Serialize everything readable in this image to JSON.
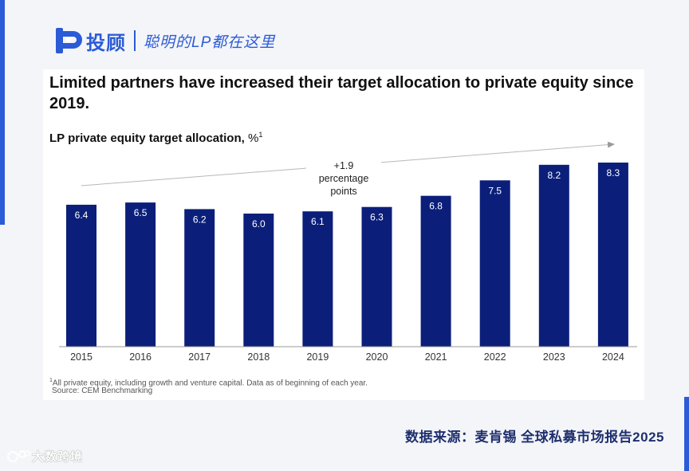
{
  "brand": {
    "name": "投顾",
    "slogan": "聪明的LP都在这里",
    "accent_color": "#2b5bd7"
  },
  "card": {
    "headline": "Limited partners have increased their target allocation to private equity since 2019.",
    "subtitle": "LP private equity target allocation,",
    "subtitle_unit": "%",
    "subtitle_footnote_mark": "1",
    "footnote_mark": "1",
    "footnote": "All private equity, including growth and venture capital. Data as of beginning of each year.",
    "source": "Source: CEM Benchmarking"
  },
  "chart_data": {
    "type": "bar",
    "title": "LP private equity target allocation, %",
    "xlabel": "",
    "ylabel": "",
    "categories": [
      "2015",
      "2016",
      "2017",
      "2018",
      "2019",
      "2020",
      "2021",
      "2022",
      "2023",
      "2024"
    ],
    "values": [
      6.4,
      6.5,
      6.2,
      6.0,
      6.1,
      6.3,
      6.8,
      7.5,
      8.2,
      8.3
    ],
    "value_labels": [
      "6.4",
      "6.5",
      "6.2",
      "6.0",
      "6.1",
      "6.3",
      "6.8",
      "7.5",
      "8.2",
      "8.3"
    ],
    "ylim": [
      0,
      8.3
    ],
    "grid": false,
    "bar_color": "#0b1f7a",
    "annotation": {
      "lines": [
        "+1.9",
        "percentage",
        "points"
      ],
      "arrow": "trend arrow rising to the right"
    }
  },
  "data_source": "数据来源：麦肯锡 全球私募市场报告2025",
  "watermark": {
    "text": "大数跨境"
  }
}
